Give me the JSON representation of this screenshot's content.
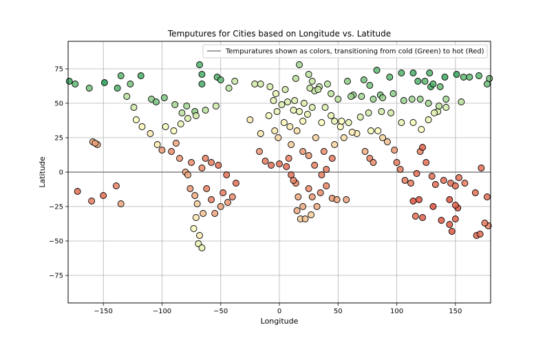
{
  "chart_data": {
    "type": "scatter",
    "title": "Temputures for Cities based on Longitude vs. Latitude",
    "xlabel": "Longitude",
    "ylabel": "Latitude",
    "xlim": [
      -180,
      180
    ],
    "ylim": [
      -95,
      95
    ],
    "xticks": [
      -150,
      -100,
      -50,
      0,
      50,
      100,
      150
    ],
    "yticks": [
      -75,
      -50,
      -25,
      0,
      25,
      50,
      75
    ],
    "grid": true,
    "zero_line": 0,
    "legend": {
      "label": "Tempuratures shown as colors, transitioning from cold (Green) to hot (Red)",
      "placement": "top-right",
      "line_color": "#808080"
    },
    "colormap": {
      "cold": "#1a9850",
      "mid": "#ffffbf",
      "hot": "#d73027"
    },
    "temperature_unit": "relative 0-1 (cold to hot)",
    "points": [
      {
        "x": -179,
        "y": 66,
        "t": 0.08
      },
      {
        "x": -174,
        "y": 64,
        "t": 0.15
      },
      {
        "x": -162,
        "y": 61,
        "t": 0.2
      },
      {
        "x": -149,
        "y": 65,
        "t": 0.02
      },
      {
        "x": -138,
        "y": 61,
        "t": 0.12
      },
      {
        "x": -135,
        "y": 70,
        "t": 0.15
      },
      {
        "x": -127,
        "y": 64,
        "t": 0.2
      },
      {
        "x": -118,
        "y": 70,
        "t": 0.1
      },
      {
        "x": -109,
        "y": 53,
        "t": 0.25
      },
      {
        "x": -105,
        "y": 51,
        "t": 0.2
      },
      {
        "x": -98,
        "y": 54,
        "t": 0.22
      },
      {
        "x": -89,
        "y": 49,
        "t": 0.3
      },
      {
        "x": -83,
        "y": 43,
        "t": 0.35
      },
      {
        "x": -79,
        "y": 48,
        "t": 0.3
      },
      {
        "x": -72,
        "y": 44,
        "t": 0.25
      },
      {
        "x": -66,
        "y": 71,
        "t": 0.1
      },
      {
        "x": -68,
        "y": 78,
        "t": 0.12
      },
      {
        "x": -66,
        "y": 64,
        "t": 0.1
      },
      {
        "x": -53,
        "y": 69,
        "t": 0.12
      },
      {
        "x": -50,
        "y": 67,
        "t": 0.15
      },
      {
        "x": -54,
        "y": 48,
        "t": 0.4
      },
      {
        "x": -43,
        "y": 61,
        "t": 0.35
      },
      {
        "x": -38,
        "y": 66,
        "t": 0.38
      },
      {
        "x": -21,
        "y": 64,
        "t": 0.4
      },
      {
        "x": -16,
        "y": 64,
        "t": 0.4
      },
      {
        "x": -8,
        "y": 62,
        "t": 0.42
      },
      {
        "x": -3,
        "y": 57,
        "t": 0.45
      },
      {
        "x": 5,
        "y": 60,
        "t": 0.4
      },
      {
        "x": 14,
        "y": 68,
        "t": 0.35
      },
      {
        "x": 17,
        "y": 78,
        "t": 0.3
      },
      {
        "x": 25,
        "y": 71,
        "t": 0.35
      },
      {
        "x": 28,
        "y": 66,
        "t": 0.38
      },
      {
        "x": 34,
        "y": 62,
        "t": 0.38
      },
      {
        "x": 44,
        "y": 57,
        "t": 0.35
      },
      {
        "x": 58,
        "y": 66,
        "t": 0.25
      },
      {
        "x": 63,
        "y": 56,
        "t": 0.25
      },
      {
        "x": 72,
        "y": 67,
        "t": 0.2
      },
      {
        "x": 77,
        "y": 63,
        "t": 0.2
      },
      {
        "x": 83,
        "y": 74,
        "t": 0.15
      },
      {
        "x": 86,
        "y": 56,
        "t": 0.2
      },
      {
        "x": 94,
        "y": 69,
        "t": 0.15
      },
      {
        "x": 104,
        "y": 72,
        "t": 0.12
      },
      {
        "x": 114,
        "y": 72,
        "t": 0.1
      },
      {
        "x": 118,
        "y": 66,
        "t": 0.12
      },
      {
        "x": 128,
        "y": 72,
        "t": 0.12
      },
      {
        "x": 129,
        "y": 62,
        "t": 0.1
      },
      {
        "x": 141,
        "y": 69,
        "t": 0.08
      },
      {
        "x": 151,
        "y": 71,
        "t": 0.05
      },
      {
        "x": 157,
        "y": 69,
        "t": 0.15
      },
      {
        "x": 162,
        "y": 69,
        "t": 0.15
      },
      {
        "x": 170,
        "y": 70,
        "t": 0.15
      },
      {
        "x": 177,
        "y": 64,
        "t": 0.18
      },
      {
        "x": 179,
        "y": 68,
        "t": 0.2
      },
      {
        "x": 155,
        "y": 51,
        "t": 0.35
      },
      {
        "x": 142,
        "y": 47,
        "t": 0.4
      },
      {
        "x": 135,
        "y": 44,
        "t": 0.42
      },
      {
        "x": 132,
        "y": 43,
        "t": 0.45
      },
      {
        "x": 127,
        "y": 38,
        "t": 0.45
      },
      {
        "x": 121,
        "y": 31,
        "t": 0.5
      },
      {
        "x": 114,
        "y": 36,
        "t": 0.48
      },
      {
        "x": 104,
        "y": 36,
        "t": 0.45
      },
      {
        "x": 95,
        "y": 43,
        "t": 0.4
      },
      {
        "x": 87,
        "y": 44,
        "t": 0.4
      },
      {
        "x": 76,
        "y": 43,
        "t": 0.4
      },
      {
        "x": 69,
        "y": 40,
        "t": 0.42
      },
      {
        "x": 59,
        "y": 36,
        "t": 0.45
      },
      {
        "x": 52,
        "y": 33,
        "t": 0.5
      },
      {
        "x": 44,
        "y": 41,
        "t": 0.45
      },
      {
        "x": 36,
        "y": 36,
        "t": 0.5
      },
      {
        "x": 28,
        "y": 47,
        "t": 0.42
      },
      {
        "x": 21,
        "y": 50,
        "t": 0.42
      },
      {
        "x": 13,
        "y": 52,
        "t": 0.42
      },
      {
        "x": 7,
        "y": 51,
        "t": 0.42
      },
      {
        "x": 2,
        "y": 49,
        "t": 0.42
      },
      {
        "x": -5,
        "y": 52,
        "t": 0.44
      },
      {
        "x": -9,
        "y": 41,
        "t": 0.48
      },
      {
        "x": -16,
        "y": 28,
        "t": 0.55
      },
      {
        "x": -25,
        "y": 38,
        "t": 0.55
      },
      {
        "x": -63,
        "y": 45,
        "t": 0.35
      },
      {
        "x": -71,
        "y": 41,
        "t": 0.4
      },
      {
        "x": -78,
        "y": 39,
        "t": 0.42
      },
      {
        "x": -84,
        "y": 35,
        "t": 0.45
      },
      {
        "x": -90,
        "y": 30,
        "t": 0.5
      },
      {
        "x": -97,
        "y": 33,
        "t": 0.48
      },
      {
        "x": -104,
        "y": 20,
        "t": 0.55
      },
      {
        "x": -110,
        "y": 28,
        "t": 0.55
      },
      {
        "x": -117,
        "y": 33,
        "t": 0.52
      },
      {
        "x": -122,
        "y": 38,
        "t": 0.5
      },
      {
        "x": -124,
        "y": 47,
        "t": 0.4
      },
      {
        "x": -130,
        "y": 55,
        "t": 0.35
      },
      {
        "x": -155,
        "y": 20,
        "t": 0.72
      },
      {
        "x": -159,
        "y": 22,
        "t": 0.7
      },
      {
        "x": -157,
        "y": 21,
        "t": 0.72
      },
      {
        "x": -100,
        "y": 16,
        "t": 0.75
      },
      {
        "x": -92,
        "y": 15,
        "t": 0.78
      },
      {
        "x": -88,
        "y": 21,
        "t": 0.72
      },
      {
        "x": -80,
        "y": 0,
        "t": 0.72
      },
      {
        "x": -78,
        "y": -2,
        "t": 0.7
      },
      {
        "x": -76,
        "y": -12,
        "t": 0.75
      },
      {
        "x": -72,
        "y": -17,
        "t": 0.7
      },
      {
        "x": -70,
        "y": -23,
        "t": 0.62
      },
      {
        "x": -71,
        "y": -33,
        "t": 0.55
      },
      {
        "x": -73,
        "y": -41,
        "t": 0.5
      },
      {
        "x": -69,
        "y": -52,
        "t": 0.45
      },
      {
        "x": -66,
        "y": -55,
        "t": 0.45
      },
      {
        "x": -68,
        "y": -46,
        "t": 0.55
      },
      {
        "x": -65,
        "y": -30,
        "t": 0.65
      },
      {
        "x": -62,
        "y": -12,
        "t": 0.8
      },
      {
        "x": -58,
        "y": -20,
        "t": 0.8
      },
      {
        "x": -55,
        "y": -30,
        "t": 0.72
      },
      {
        "x": -50,
        "y": -25,
        "t": 0.72
      },
      {
        "x": -48,
        "y": -15,
        "t": 0.82
      },
      {
        "x": -44,
        "y": -22,
        "t": 0.75
      },
      {
        "x": -40,
        "y": -18,
        "t": 0.78
      },
      {
        "x": -37,
        "y": -8,
        "t": 0.85
      },
      {
        "x": -45,
        "y": -2,
        "t": 0.85
      },
      {
        "x": -52,
        "y": 5,
        "t": 0.85
      },
      {
        "x": -58,
        "y": 7,
        "t": 0.82
      },
      {
        "x": -63,
        "y": 10,
        "t": 0.8
      },
      {
        "x": -66,
        "y": 3,
        "t": 0.78
      },
      {
        "x": -75,
        "y": 7,
        "t": 0.78
      },
      {
        "x": -85,
        "y": 10,
        "t": 0.75
      },
      {
        "x": -172,
        "y": -14,
        "t": 0.85
      },
      {
        "x": -160,
        "y": -21,
        "t": 0.82
      },
      {
        "x": -150,
        "y": -17,
        "t": 0.85
      },
      {
        "x": -139,
        "y": -10,
        "t": 0.8
      },
      {
        "x": -135,
        "y": -23,
        "t": 0.72
      },
      {
        "x": -17,
        "y": 15,
        "t": 0.75
      },
      {
        "x": -12,
        "y": 8,
        "t": 0.82
      },
      {
        "x": -7,
        "y": 5,
        "t": 0.85
      },
      {
        "x": 0,
        "y": 6,
        "t": 0.85
      },
      {
        "x": 6,
        "y": 4,
        "t": 0.85
      },
      {
        "x": 10,
        "y": -2,
        "t": 0.85
      },
      {
        "x": 14,
        "y": -8,
        "t": 0.8
      },
      {
        "x": 16,
        "y": -18,
        "t": 0.72
      },
      {
        "x": 18,
        "y": -34,
        "t": 0.62
      },
      {
        "x": 22,
        "y": -34,
        "t": 0.65
      },
      {
        "x": 27,
        "y": -31,
        "t": 0.62
      },
      {
        "x": 32,
        "y": -25,
        "t": 0.7
      },
      {
        "x": 35,
        "y": -15,
        "t": 0.78
      },
      {
        "x": 40,
        "y": -10,
        "t": 0.8
      },
      {
        "x": 45,
        "y": -19,
        "t": 0.75
      },
      {
        "x": 49,
        "y": -20,
        "t": 0.72
      },
      {
        "x": 57,
        "y": -20,
        "t": 0.72
      },
      {
        "x": 40,
        "y": 2,
        "t": 0.82
      },
      {
        "x": 45,
        "y": 10,
        "t": 0.82
      },
      {
        "x": 38,
        "y": 15,
        "t": 0.78
      },
      {
        "x": 31,
        "y": 25,
        "t": 0.6
      },
      {
        "x": 47,
        "y": 20,
        "t": 0.6
      },
      {
        "x": 55,
        "y": 25,
        "t": 0.58
      },
      {
        "x": 73,
        "y": 15,
        "t": 0.7
      },
      {
        "x": 77,
        "y": 10,
        "t": 0.8
      },
      {
        "x": 80,
        "y": 7,
        "t": 0.78
      },
      {
        "x": 92,
        "y": 22,
        "t": 0.65
      },
      {
        "x": 98,
        "y": 16,
        "t": 0.75
      },
      {
        "x": 100,
        "y": 7,
        "t": 0.82
      },
      {
        "x": 103,
        "y": 2,
        "t": 0.82
      },
      {
        "x": 107,
        "y": -6,
        "t": 0.82
      },
      {
        "x": 112,
        "y": -8,
        "t": 0.82
      },
      {
        "x": 117,
        "y": -1,
        "t": 0.85
      },
      {
        "x": 120,
        "y": 15,
        "t": 0.8
      },
      {
        "x": 122,
        "y": 18,
        "t": 0.88
      },
      {
        "x": 125,
        "y": 7,
        "t": 0.85
      },
      {
        "x": 130,
        "y": -3,
        "t": 0.85
      },
      {
        "x": 133,
        "y": -9,
        "t": 0.85
      },
      {
        "x": 140,
        "y": -6,
        "t": 0.85
      },
      {
        "x": 146,
        "y": -8,
        "t": 0.85
      },
      {
        "x": 150,
        "y": -10,
        "t": 0.85
      },
      {
        "x": 153,
        "y": -4,
        "t": 0.85
      },
      {
        "x": 158,
        "y": -8,
        "t": 0.82
      },
      {
        "x": 167,
        "y": -15,
        "t": 0.85
      },
      {
        "x": 177,
        "y": -18,
        "t": 0.85
      },
      {
        "x": 178,
        "y": -39,
        "t": 0.8
      },
      {
        "x": 175,
        "y": -37,
        "t": 0.82
      },
      {
        "x": 168,
        "y": -46,
        "t": 0.85
      },
      {
        "x": 171,
        "y": -45,
        "t": 0.85
      },
      {
        "x": 147,
        "y": -43,
        "t": 0.9
      },
      {
        "x": 150,
        "y": -34,
        "t": 0.88
      },
      {
        "x": 145,
        "y": -38,
        "t": 0.9
      },
      {
        "x": 138,
        "y": -35,
        "t": 0.9
      },
      {
        "x": 131,
        "y": -25,
        "t": 0.92
      },
      {
        "x": 122,
        "y": -33,
        "t": 0.88
      },
      {
        "x": 116,
        "y": -32,
        "t": 0.85
      },
      {
        "x": 114,
        "y": -21,
        "t": 0.92
      },
      {
        "x": 119,
        "y": -20,
        "t": 0.92
      },
      {
        "x": 145,
        "y": -20,
        "t": 0.92
      },
      {
        "x": 152,
        "y": -26,
        "t": 0.9
      },
      {
        "x": 150,
        "y": -24,
        "t": 0.88
      },
      {
        "x": 172,
        "y": 3,
        "t": 0.85
      },
      {
        "x": 88,
        "y": 25,
        "t": 0.6
      },
      {
        "x": 84,
        "y": 30,
        "t": 0.5
      },
      {
        "x": 78,
        "y": 30,
        "t": 0.48
      },
      {
        "x": 66,
        "y": 28,
        "t": 0.55
      },
      {
        "x": 62,
        "y": 29,
        "t": 0.55
      },
      {
        "x": 53,
        "y": 37,
        "t": 0.5
      },
      {
        "x": 47,
        "y": 37,
        "t": 0.45
      },
      {
        "x": 39,
        "y": 47,
        "t": 0.42
      },
      {
        "x": 30,
        "y": 59,
        "t": 0.38
      },
      {
        "x": 26,
        "y": 61,
        "t": 0.38
      },
      {
        "x": 33,
        "y": 60,
        "t": 0.38
      },
      {
        "x": 41,
        "y": 64,
        "t": 0.35
      },
      {
        "x": 50,
        "y": 53,
        "t": 0.35
      },
      {
        "x": 61,
        "y": 55,
        "t": 0.3
      },
      {
        "x": 70,
        "y": 55,
        "t": 0.3
      },
      {
        "x": 80,
        "y": 53,
        "t": 0.28
      },
      {
        "x": 88,
        "y": 54,
        "t": 0.28
      },
      {
        "x": 97,
        "y": 57,
        "t": 0.25
      },
      {
        "x": 106,
        "y": 52,
        "t": 0.28
      },
      {
        "x": 113,
        "y": 53,
        "t": 0.3
      },
      {
        "x": 120,
        "y": 53,
        "t": 0.28
      },
      {
        "x": 127,
        "y": 50,
        "t": 0.3
      },
      {
        "x": 136,
        "y": 48,
        "t": 0.35
      },
      {
        "x": 142,
        "y": 53,
        "t": 0.3
      },
      {
        "x": 137,
        "y": 62,
        "t": 0.18
      },
      {
        "x": 131,
        "y": 64,
        "t": 0.12
      },
      {
        "x": 124,
        "y": 66,
        "t": 0.15
      },
      {
        "x": 12,
        "y": 45,
        "t": 0.45
      },
      {
        "x": 17,
        "y": 44,
        "t": 0.45
      },
      {
        "x": 24,
        "y": 42,
        "t": 0.45
      },
      {
        "x": 4,
        "y": 36,
        "t": 0.52
      },
      {
        "x": 9,
        "y": 33,
        "t": 0.55
      },
      {
        "x": 15,
        "y": 30,
        "t": 0.58
      },
      {
        "x": 20,
        "y": 37,
        "t": 0.52
      },
      {
        "x": -2,
        "y": 44,
        "t": 0.45
      },
      {
        "x": -4,
        "y": 30,
        "t": 0.55
      },
      {
        "x": -1,
        "y": 25,
        "t": 0.6
      },
      {
        "x": 10,
        "y": 20,
        "t": 0.62
      },
      {
        "x": 20,
        "y": 15,
        "t": 0.75
      },
      {
        "x": 25,
        "y": 12,
        "t": 0.75
      },
      {
        "x": 30,
        "y": 5,
        "t": 0.8
      },
      {
        "x": 36,
        "y": -2,
        "t": 0.82
      },
      {
        "x": 25,
        "y": -12,
        "t": 0.78
      },
      {
        "x": 28,
        "y": -18,
        "t": 0.75
      },
      {
        "x": 20,
        "y": -25,
        "t": 0.7
      },
      {
        "x": 15,
        "y": -28,
        "t": 0.7
      },
      {
        "x": 12,
        "y": -6,
        "t": 0.8
      },
      {
        "x": 8,
        "y": 10,
        "t": 0.8
      }
    ]
  }
}
